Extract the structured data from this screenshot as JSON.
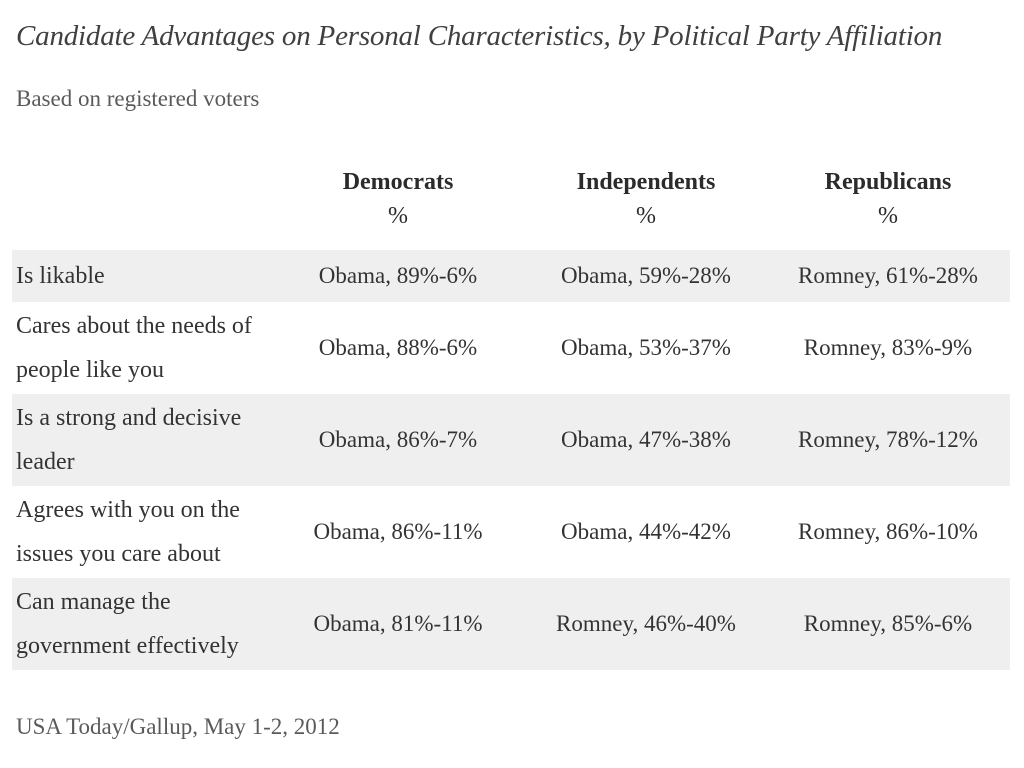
{
  "chart_data": {
    "type": "table",
    "title": "Candidate Advantages on Personal Characteristics, by Political Party Affiliation",
    "subtitle": "Based on registered voters",
    "columns": [
      {
        "name": "Democrats",
        "unit": "%"
      },
      {
        "name": "Independents",
        "unit": "%"
      },
      {
        "name": "Republicans",
        "unit": "%"
      }
    ],
    "rows": [
      {
        "label": "Is likable",
        "values": [
          "Obama, 89%-6%",
          "Obama, 59%-28%",
          "Romney, 61%-28%"
        ]
      },
      {
        "label": "Cares about the needs of people like you",
        "values": [
          "Obama, 88%-6%",
          "Obama, 53%-37%",
          "Romney, 83%-9%"
        ]
      },
      {
        "label": "Is a strong and decisive leader",
        "values": [
          "Obama, 86%-7%",
          "Obama, 47%-38%",
          "Romney, 78%-12%"
        ]
      },
      {
        "label": "Agrees with you on the issues you care about",
        "values": [
          "Obama, 86%-11%",
          "Obama, 44%-42%",
          "Romney, 86%-10%"
        ]
      },
      {
        "label": "Can manage the government effectively",
        "values": [
          "Obama, 81%-11%",
          "Romney, 46%-40%",
          "Romney, 85%-6%"
        ]
      }
    ],
    "source": "USA Today/Gallup, May 1-2, 2012"
  }
}
